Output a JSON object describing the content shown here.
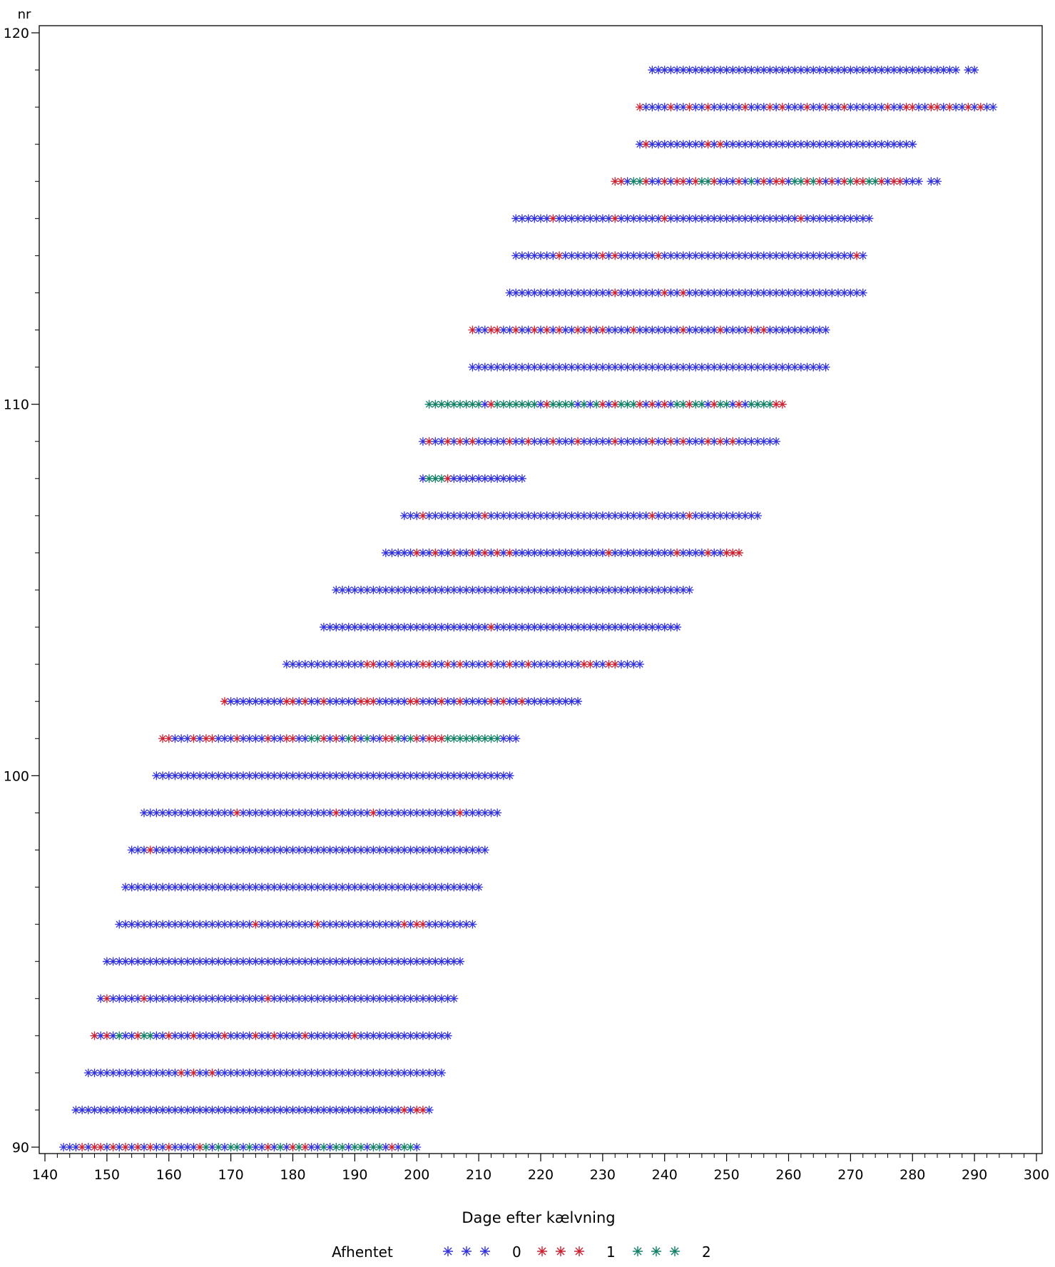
{
  "chart_data": {
    "type": "scatter",
    "title": "",
    "xlabel": "Dage efter kælvning",
    "ylabel": "nr",
    "xlim": [
      140,
      300
    ],
    "ylim": [
      90,
      120
    ],
    "x_ticks": [
      140,
      150,
      160,
      170,
      180,
      190,
      200,
      210,
      220,
      230,
      240,
      250,
      260,
      270,
      280,
      290,
      300
    ],
    "y_ticks": [
      90,
      100,
      110,
      120
    ],
    "x_minor_step": 2,
    "y_minor_step": 1,
    "grid": false,
    "marker": "asterisk",
    "legend": {
      "title": "Afhentet",
      "position": "bottom-center",
      "entries": [
        {
          "label": "0",
          "color": "#3333dd"
        },
        {
          "label": "1",
          "color": "#cc2233"
        },
        {
          "label": "2",
          "color": "#118066"
        }
      ]
    },
    "default_category": "0",
    "rows": [
      {
        "nr": 90,
        "start": 143,
        "end": 200,
        "cat1": [
          146,
          148,
          149,
          151,
          153,
          155,
          157,
          160,
          165,
          176,
          180,
          182,
          196
        ],
        "cat2": [
          166,
          168,
          170,
          171,
          173,
          178,
          181,
          185,
          187,
          188,
          190,
          191,
          193,
          194,
          198,
          199
        ]
      },
      {
        "nr": 91,
        "start": 145,
        "end": 202,
        "cat1": [
          198,
          200,
          201
        ],
        "cat2": []
      },
      {
        "nr": 92,
        "start": 147,
        "end": 204,
        "cat1": [
          162,
          164,
          167
        ],
        "cat2": []
      },
      {
        "nr": 93,
        "start": 148,
        "end": 205,
        "cat1": [
          148,
          150,
          155,
          160,
          164,
          169,
          174,
          177,
          182,
          190
        ],
        "cat2": [
          152,
          156,
          157
        ]
      },
      {
        "nr": 94,
        "start": 149,
        "end": 206,
        "cat1": [
          150,
          156,
          176
        ],
        "cat2": []
      },
      {
        "nr": 95,
        "start": 150,
        "end": 207,
        "cat1": [],
        "cat2": []
      },
      {
        "nr": 96,
        "start": 152,
        "end": 209,
        "cat1": [
          174,
          184,
          198,
          200,
          201
        ],
        "cat2": []
      },
      {
        "nr": 97,
        "start": 153,
        "end": 210,
        "cat1": [],
        "cat2": []
      },
      {
        "nr": 98,
        "start": 154,
        "end": 211,
        "cat1": [
          157
        ],
        "cat2": []
      },
      {
        "nr": 99,
        "start": 156,
        "end": 213,
        "cat1": [
          171,
          187,
          193,
          207
        ],
        "cat2": []
      },
      {
        "nr": 100,
        "start": 158,
        "end": 215,
        "cat1": [],
        "cat2": []
      },
      {
        "nr": 101,
        "start": 159,
        "end": 216,
        "cat1": [
          159,
          160,
          164,
          166,
          167,
          171,
          176,
          179,
          180,
          185,
          187,
          190,
          195,
          196,
          200,
          202,
          203,
          204
        ],
        "cat2": [
          183,
          184,
          189,
          192,
          197,
          199,
          205,
          206,
          207,
          208,
          209,
          210,
          211,
          212,
          213
        ]
      },
      {
        "nr": 102,
        "start": 169,
        "end": 226,
        "cat1": [
          169,
          179,
          180,
          182,
          185,
          191,
          192,
          193,
          199,
          200,
          204,
          207,
          212,
          214,
          217
        ],
        "cat2": []
      },
      {
        "nr": 103,
        "start": 179,
        "end": 236,
        "cat1": [
          192,
          193,
          196,
          201,
          202,
          205,
          207,
          212,
          215,
          218,
          227,
          228,
          231,
          232
        ],
        "cat2": []
      },
      {
        "nr": 104,
        "start": 185,
        "end": 242,
        "cat1": [
          212
        ],
        "cat2": []
      },
      {
        "nr": 105,
        "start": 187,
        "end": 244,
        "cat1": [],
        "cat2": []
      },
      {
        "nr": 106,
        "start": 195,
        "end": 252,
        "cat1": [
          200,
          203,
          206,
          209,
          211,
          213,
          215,
          231,
          242,
          247,
          250,
          251,
          252
        ],
        "cat2": []
      },
      {
        "nr": 107,
        "start": 198,
        "end": 255,
        "cat1": [
          201,
          211,
          238,
          244
        ],
        "cat2": []
      },
      {
        "nr": 108,
        "start": 201,
        "end": 217,
        "cat1": [
          205
        ],
        "cat2": [
          202,
          203,
          204
        ]
      },
      {
        "nr": 109,
        "start": 201,
        "end": 258,
        "cat1": [
          202,
          205,
          207,
          209,
          215,
          218,
          222,
          226,
          232,
          238,
          241,
          243,
          247,
          249,
          251
        ],
        "cat2": []
      },
      {
        "nr": 110,
        "start": 202,
        "end": 259,
        "cat1": [
          212,
          221,
          230,
          232,
          236,
          238,
          240,
          244,
          248,
          252,
          258,
          259
        ],
        "cat2": [
          202,
          203,
          204,
          205,
          206,
          207,
          208,
          209,
          210,
          213,
          214,
          215,
          216,
          217,
          218,
          219,
          222,
          223,
          224,
          225,
          227,
          229,
          233,
          234,
          235,
          242,
          243,
          245,
          246,
          249,
          250,
          254,
          255,
          256,
          257
        ]
      },
      {
        "nr": 111,
        "start": 209,
        "end": 266,
        "cat1": [],
        "cat2": []
      },
      {
        "nr": 112,
        "start": 209,
        "end": 266,
        "cat1": [
          209,
          212,
          213,
          216,
          219,
          221,
          223,
          226,
          228,
          230,
          235,
          243,
          249,
          254,
          256
        ],
        "cat2": []
      },
      {
        "nr": 113,
        "start": 215,
        "end": 272,
        "cat1": [
          232,
          240,
          243
        ],
        "cat2": []
      },
      {
        "nr": 114,
        "start": 216,
        "end": 272,
        "cat1": [
          223,
          230,
          232,
          239,
          271
        ],
        "cat2": []
      },
      {
        "nr": 115,
        "start": 216,
        "end": 273,
        "cat1": [
          222,
          232,
          240,
          262
        ],
        "cat2": []
      },
      {
        "nr": 116,
        "start": 232,
        "end": 284,
        "cat1": [
          232,
          233,
          237,
          240,
          242,
          243,
          245,
          248,
          252,
          256,
          258,
          259,
          263,
          265,
          267,
          269,
          271,
          272,
          275,
          277,
          278
        ],
        "cat2": [
          235,
          236,
          246,
          247,
          254,
          261,
          262,
          264,
          270,
          273,
          274
        ]
      },
      {
        "nr": 117,
        "start": 236,
        "end": 280,
        "cat1": [
          237,
          247,
          249
        ],
        "cat2": []
      },
      {
        "nr": 118,
        "start": 236,
        "end": 293,
        "cat1": [
          236,
          241,
          244,
          247,
          253,
          257,
          259,
          263,
          266,
          269,
          276,
          279,
          280,
          283,
          284,
          286,
          289,
          291
        ],
        "cat2": []
      },
      {
        "nr": 119,
        "start": 238,
        "end": 290,
        "cat1": [],
        "cat2": []
      }
    ],
    "gaps": [
      {
        "nr": 116,
        "x": 282
      },
      {
        "nr": 119,
        "x": 288
      }
    ]
  }
}
